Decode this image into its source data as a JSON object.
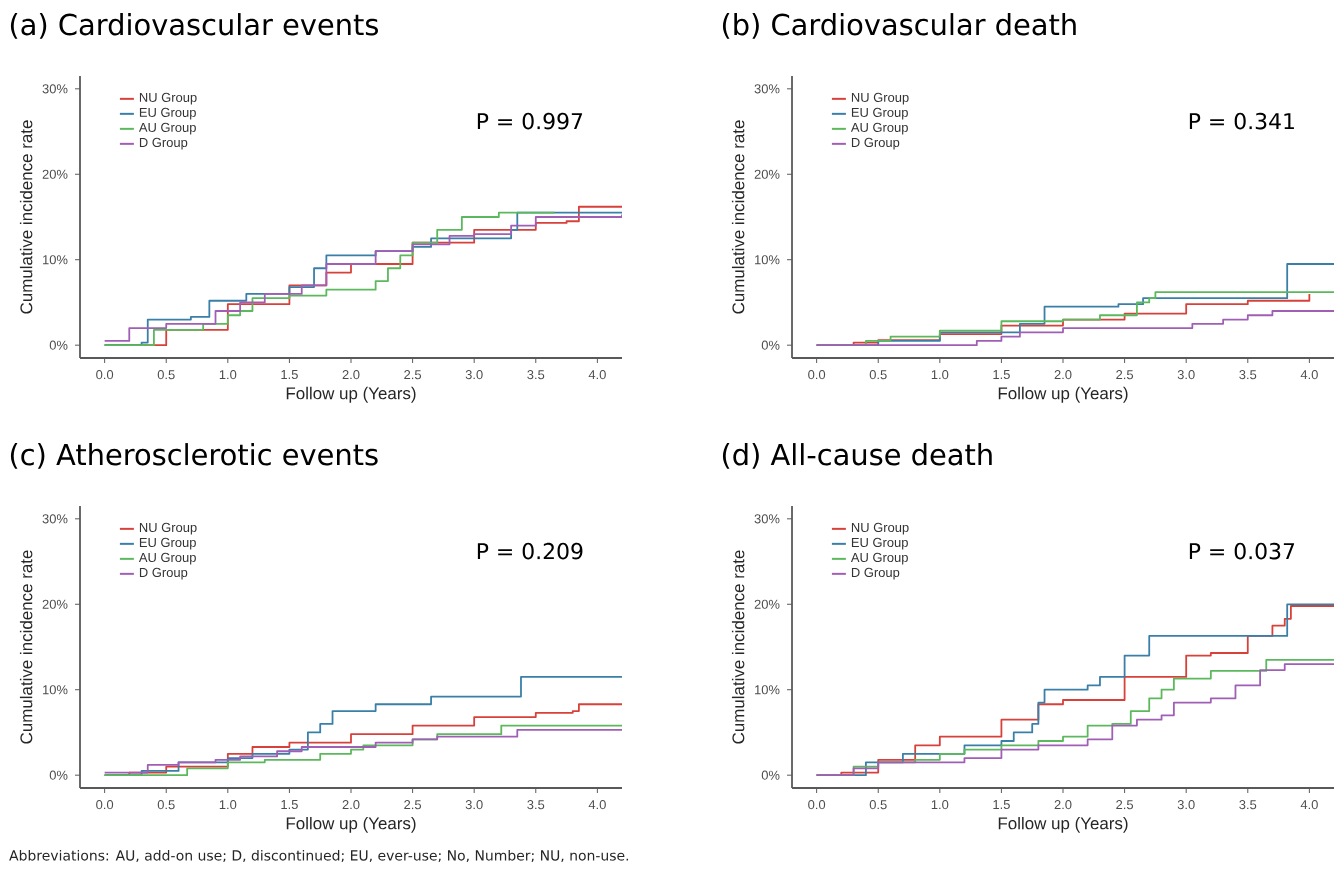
{
  "chart_data": [
    {
      "type": "step",
      "title": "(a) Cardiovascular events",
      "xlabel": "Follow up (Years)",
      "ylabel": "Cumulative incidence rate",
      "legend": "top left",
      "grid": false,
      "xlim": [
        -0.2,
        4.2
      ],
      "ylim": [
        -1.5,
        31.5
      ],
      "xticks": [
        {
          "value": 0,
          "label": "0.0"
        },
        0.5,
        {
          "value": 1,
          "label": "1.0"
        },
        1.5,
        {
          "value": 2,
          "label": "2.0"
        },
        2.5,
        {
          "value": 3,
          "label": "3.0"
        },
        3.5,
        {
          "value": 4,
          "label": "4.0"
        }
      ],
      "yticks": [
        {
          "value": 0,
          "label": "0%"
        },
        {
          "value": 10,
          "label": "10%"
        },
        {
          "value": 20,
          "label": "20%"
        },
        {
          "value": 30,
          "label": "30%"
        }
      ],
      "annotations": [
        "P = 0.997"
      ],
      "series": [
        {
          "name": "NU Group",
          "color": "#d7413a",
          "x": [
            0,
            0.1,
            0.5,
            1.0,
            1.5,
            1.8,
            2.0,
            2.5,
            3.0,
            3.5,
            3.75,
            3.85,
            4.2
          ],
          "values": [
            0,
            0,
            1.8,
            4.8,
            7,
            8.5,
            9.5,
            12,
            13.5,
            14.3,
            14.5,
            16.2,
            16.2
          ]
        },
        {
          "name": "EU Group",
          "color": "#3a7fa8",
          "x": [
            0,
            0.3,
            0.35,
            0.7,
            0.85,
            1.05,
            1.15,
            1.5,
            1.7,
            1.8,
            2.2,
            2.5,
            2.65,
            3.3,
            3.35,
            4.2
          ],
          "values": [
            0,
            0.3,
            3,
            3.3,
            5.2,
            5.2,
            6,
            6.8,
            9,
            10.5,
            11,
            11.5,
            12.5,
            13.5,
            15.5,
            15.5
          ]
        },
        {
          "name": "AU Group",
          "color": "#5cb85c",
          "x": [
            0,
            0.35,
            0.4,
            0.6,
            0.8,
            1.0,
            1.1,
            1.2,
            1.4,
            1.5,
            1.8,
            2.0,
            2.2,
            2.3,
            2.4,
            2.5,
            2.7,
            2.9,
            3.2,
            3.65
          ],
          "values": [
            0,
            0,
            1.8,
            1.8,
            2.5,
            3.5,
            4,
            5.5,
            5.5,
            5.8,
            6.5,
            6.5,
            7.5,
            9,
            10.5,
            12,
            13.5,
            15,
            15.5,
            15.5
          ]
        },
        {
          "name": "D Group",
          "color": "#a05fb5",
          "x": [
            0,
            0.2,
            0.5,
            0.9,
            1.1,
            1.3,
            1.6,
            1.8,
            2.2,
            2.5,
            2.8,
            3.0,
            3.3,
            3.5,
            4.2
          ],
          "values": [
            0.5,
            2,
            2.5,
            4,
            5,
            6,
            7,
            9.5,
            11,
            11.8,
            12.8,
            13,
            14,
            15,
            15.3
          ]
        }
      ]
    },
    {
      "type": "step",
      "title": "(b) Cardiovascular death",
      "xlabel": "Follow up (Years)",
      "ylabel": "Cumulative incidence rate",
      "legend": "top left",
      "grid": false,
      "xlim": [
        -0.2,
        4.2
      ],
      "ylim": [
        -1.5,
        31.5
      ],
      "xticks": [
        {
          "value": 0,
          "label": "0.0"
        },
        0.5,
        {
          "value": 1,
          "label": "1.0"
        },
        1.5,
        {
          "value": 2,
          "label": "2.0"
        },
        2.5,
        {
          "value": 3,
          "label": "3.0"
        },
        3.5,
        {
          "value": 4,
          "label": "4.0"
        }
      ],
      "yticks": [
        {
          "value": 0,
          "label": "0%"
        },
        {
          "value": 10,
          "label": "10%"
        },
        {
          "value": 20,
          "label": "20%"
        },
        {
          "value": 30,
          "label": "30%"
        }
      ],
      "annotations": [
        "P = 0.341"
      ],
      "series": [
        {
          "name": "NU Group",
          "color": "#d7413a",
          "x": [
            0,
            0.3,
            0.5,
            1.0,
            1.5,
            2.0,
            2.5,
            3.0,
            3.5,
            4.0
          ],
          "values": [
            0,
            0.3,
            0.6,
            1.3,
            2.3,
            3.0,
            3.7,
            4.8,
            5.2,
            6.0
          ]
        },
        {
          "name": "EU Group",
          "color": "#3a7fa8",
          "x": [
            0,
            0.5,
            1.0,
            1.6,
            1.65,
            1.85,
            2.4,
            2.45,
            2.65,
            3.8,
            3.82,
            4.2
          ],
          "values": [
            0,
            0.5,
            1.5,
            1.5,
            2.5,
            4.5,
            4.5,
            4.8,
            5.5,
            5.5,
            9.5,
            9.5
          ]
        },
        {
          "name": "AU Group",
          "color": "#5cb85c",
          "x": [
            0,
            0.4,
            0.6,
            1.0,
            1.5,
            2.0,
            2.3,
            2.6,
            2.7,
            2.75,
            4.2
          ],
          "values": [
            0,
            0.5,
            1.0,
            1.7,
            2.8,
            3.0,
            3.5,
            5.0,
            5.5,
            6.2,
            6.2
          ]
        },
        {
          "name": "D Group",
          "color": "#a05fb5",
          "x": [
            0,
            0.8,
            1.3,
            1.5,
            1.65,
            2.0,
            3.0,
            3.05,
            3.3,
            3.5,
            3.7,
            4.2
          ],
          "values": [
            0,
            0,
            0.5,
            1.0,
            1.5,
            2.0,
            2.0,
            2.5,
            3.0,
            3.5,
            4.0,
            4.0
          ]
        }
      ]
    },
    {
      "type": "step",
      "title": "(c) Atherosclerotic events",
      "xlabel": "Follow up (Years)",
      "ylabel": "Cumulative incidence rate",
      "legend": "top left",
      "grid": false,
      "xlim": [
        -0.2,
        4.2
      ],
      "ylim": [
        -1.5,
        31.5
      ],
      "xticks": [
        {
          "value": 0,
          "label": "0.0"
        },
        0.5,
        {
          "value": 1,
          "label": "1.0"
        },
        1.5,
        {
          "value": 2,
          "label": "2.0"
        },
        2.5,
        {
          "value": 3,
          "label": "3.0"
        },
        3.5,
        {
          "value": 4,
          "label": "4.0"
        }
      ],
      "yticks": [
        {
          "value": 0,
          "label": "0%"
        },
        {
          "value": 10,
          "label": "10%"
        },
        {
          "value": 20,
          "label": "20%"
        },
        {
          "value": 30,
          "label": "30%"
        }
      ],
      "annotations": [
        "P = 0.209",
        "Abbreviations: AU, add-on use; D, discontinued; EU, ever-use; No, Number; NU, non-use."
      ],
      "series": [
        {
          "name": "NU Group",
          "color": "#d7413a",
          "x": [
            0,
            0.2,
            0.5,
            1.0,
            1.2,
            1.5,
            2.0,
            2.5,
            3.0,
            3.5,
            3.8,
            3.85,
            4.2
          ],
          "values": [
            0,
            0.3,
            1,
            2.5,
            3.3,
            3.8,
            4.8,
            5.8,
            6.8,
            7.3,
            7.5,
            8.3,
            8.3
          ]
        },
        {
          "name": "EU Group",
          "color": "#3a7fa8",
          "x": [
            0,
            0.3,
            0.6,
            1.0,
            1.2,
            1.5,
            1.65,
            1.75,
            1.85,
            2.2,
            2.65,
            3.35,
            3.38,
            4.2
          ],
          "values": [
            0,
            0.5,
            1.5,
            2.0,
            2.5,
            3.0,
            5,
            6,
            7.5,
            8.3,
            9.2,
            9.2,
            11.5,
            11.5
          ]
        },
        {
          "name": "AU Group",
          "color": "#5cb85c",
          "x": [
            0,
            0.65,
            0.67,
            1.0,
            1.3,
            1.75,
            2.0,
            2.1,
            2.5,
            2.7,
            3.2,
            3.22,
            4.2
          ],
          "values": [
            0,
            0,
            0.8,
            1.5,
            1.8,
            2.5,
            3.0,
            3.5,
            4.2,
            4.8,
            4.8,
            5.8,
            5.8
          ]
        },
        {
          "name": "D Group",
          "color": "#a05fb5",
          "x": [
            0,
            0.35,
            0.6,
            0.9,
            1.1,
            1.4,
            1.6,
            2.0,
            2.2,
            2.5,
            2.7,
            3.3,
            3.35,
            4.2
          ],
          "values": [
            0.3,
            1.2,
            1.5,
            1.8,
            2.2,
            2.8,
            3.3,
            3.3,
            3.8,
            4.2,
            4.5,
            4.5,
            5.3,
            5.3
          ]
        }
      ]
    },
    {
      "type": "step",
      "title": "(d) All-cause death",
      "xlabel": "Follow up (Years)",
      "ylabel": "Cumulative incidence rate",
      "legend": "top left",
      "grid": false,
      "xlim": [
        -0.2,
        4.2
      ],
      "ylim": [
        -1.5,
        31.5
      ],
      "xticks": [
        {
          "value": 0,
          "label": "0.0"
        },
        0.5,
        {
          "value": 1,
          "label": "1.0"
        },
        1.5,
        {
          "value": 2,
          "label": "2.0"
        },
        2.5,
        {
          "value": 3,
          "label": "3.0"
        },
        3.5,
        {
          "value": 4,
          "label": "4.0"
        }
      ],
      "yticks": [
        {
          "value": 0,
          "label": "0%"
        },
        {
          "value": 10,
          "label": "10%"
        },
        {
          "value": 20,
          "label": "20%"
        },
        {
          "value": 30,
          "label": "30%"
        }
      ],
      "annotations": [
        "P = 0.037"
      ],
      "series": [
        {
          "name": "NU Group",
          "color": "#d7413a",
          "x": [
            0,
            0.2,
            0.5,
            0.8,
            1.0,
            1.5,
            1.8,
            2.0,
            2.5,
            3.0,
            3.2,
            3.5,
            3.7,
            3.8,
            3.85,
            4.2
          ],
          "values": [
            0,
            0.3,
            1.8,
            3.5,
            4.5,
            6.5,
            8.3,
            8.8,
            11.5,
            14,
            14.3,
            16.3,
            17.5,
            18.3,
            19.8,
            19.8
          ]
        },
        {
          "name": "EU Group",
          "color": "#3a7fa8",
          "x": [
            0,
            0.35,
            0.4,
            0.6,
            0.7,
            1.0,
            1.2,
            1.5,
            1.6,
            1.75,
            1.8,
            1.85,
            2.2,
            2.3,
            2.5,
            2.7,
            3.8,
            3.82,
            4.2
          ],
          "values": [
            0,
            0,
            1.5,
            1.5,
            2.5,
            2.5,
            3.5,
            4,
            5,
            6,
            8.5,
            10,
            10.5,
            11.5,
            14,
            16.3,
            16.3,
            20,
            20
          ]
        },
        {
          "name": "AU Group",
          "color": "#5cb85c",
          "x": [
            0,
            0.3,
            0.5,
            0.8,
            1.0,
            1.2,
            1.5,
            1.8,
            2.0,
            2.2,
            2.4,
            2.55,
            2.7,
            2.8,
            2.9,
            3.2,
            3.65,
            4.2
          ],
          "values": [
            0,
            1.0,
            1.5,
            1.8,
            2.5,
            3,
            3.5,
            4,
            4.5,
            5.8,
            6,
            7.5,
            9,
            10,
            11.3,
            12.2,
            13.5,
            13.5
          ]
        },
        {
          "name": "D Group",
          "color": "#a05fb5",
          "x": [
            0,
            0.3,
            0.5,
            1.0,
            1.2,
            1.5,
            1.8,
            2.2,
            2.4,
            2.6,
            2.8,
            2.9,
            3.2,
            3.4,
            3.6,
            3.8,
            4.2
          ],
          "values": [
            0,
            0.8,
            1.5,
            1.5,
            2.0,
            3.0,
            3.5,
            4.2,
            5.8,
            6.5,
            7.0,
            8.5,
            9.0,
            10.5,
            12.3,
            13,
            13
          ]
        }
      ]
    }
  ]
}
